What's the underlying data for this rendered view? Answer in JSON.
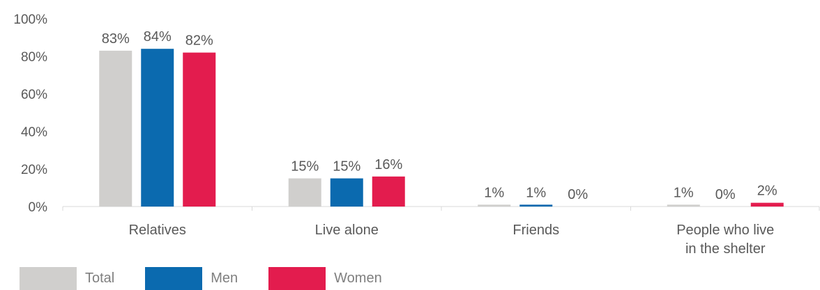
{
  "chart_data": {
    "type": "bar",
    "categories": [
      "Relatives",
      "Live alone",
      "Friends",
      "People who live in the shelter"
    ],
    "category_lines": [
      [
        "Relatives"
      ],
      [
        "Live alone"
      ],
      [
        "Friends"
      ],
      [
        "People who live",
        "in the shelter"
      ]
    ],
    "series": [
      {
        "name": "Total",
        "color": "#d0cfcd",
        "values": [
          83,
          15,
          1,
          1
        ],
        "labels": [
          "83%",
          "15%",
          "1%",
          "1%"
        ]
      },
      {
        "name": "Men",
        "color": "#0b6aaf",
        "values": [
          84,
          15,
          1,
          0
        ],
        "labels": [
          "84%",
          "15%",
          "1%",
          "0%"
        ]
      },
      {
        "name": "Women",
        "color": "#e31c4e",
        "values": [
          82,
          16,
          0,
          2
        ],
        "labels": [
          "82%",
          "16%",
          "0%",
          "2%"
        ]
      }
    ],
    "yticks": [
      "0%",
      "20%",
      "40%",
      "60%",
      "80%",
      "100%"
    ],
    "ylim": [
      0,
      100
    ],
    "legend_position": "bottom-left",
    "grid": false
  }
}
